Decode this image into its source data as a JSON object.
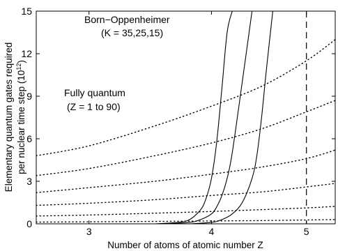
{
  "chart_data": {
    "type": "line",
    "xlabel": "Number of atoms of atomic number Z",
    "ylabel_line1": "Elementary quantum gates required",
    "ylabel_line2_pre": "per nuclear time step (10",
    "ylabel_line2_exp": "12",
    "ylabel_line2_post": ")",
    "xscale": "log10",
    "xlim": [
      2.65,
      5.35
    ],
    "ylim": [
      0,
      15
    ],
    "xticks": [
      3,
      4,
      5
    ],
    "xtick_labels": [
      "3",
      "4",
      "5"
    ],
    "yticks": [
      0,
      3,
      6,
      9,
      12,
      15
    ],
    "ytick_labels": [
      "0",
      "3",
      "6",
      "9",
      "12",
      "15"
    ],
    "grid": false,
    "legend": "none",
    "annotations": [
      {
        "id": "born",
        "text_line1": "Born−Oppenheimer",
        "text_line2": "(K = 35,25,15)"
      },
      {
        "id": "fully",
        "text_line1": "Fully quantum",
        "text_line2": "(Z = 1 to 90)"
      }
    ],
    "vertical_line": {
      "x": 5,
      "style": "dashed"
    },
    "series": [
      {
        "group": "Born-Oppenheimer",
        "style": "solid",
        "x": [
          3.5,
          3.7,
          3.8,
          3.9,
          3.95,
          4.0,
          4.05,
          4.1,
          4.15,
          4.2
        ],
        "y": [
          0.0,
          0.1,
          0.3,
          1.0,
          1.8,
          3.2,
          5.8,
          9.6,
          13.5,
          15.0
        ]
      },
      {
        "group": "Born-Oppenheimer",
        "style": "solid",
        "x": [
          3.6,
          3.8,
          3.9,
          4.0,
          4.05,
          4.1,
          4.15,
          4.2,
          4.3,
          4.4
        ],
        "y": [
          0.0,
          0.1,
          0.3,
          0.7,
          1.2,
          2.0,
          3.2,
          5.0,
          10.0,
          15.0
        ]
      },
      {
        "group": "Born-Oppenheimer",
        "style": "solid",
        "x": [
          3.8,
          4.0,
          4.1,
          4.2,
          4.3,
          4.4,
          4.45,
          4.5,
          4.55,
          4.62
        ],
        "y": [
          0.0,
          0.1,
          0.3,
          0.7,
          1.5,
          3.2,
          4.8,
          7.5,
          10.8,
          15.0
        ]
      },
      {
        "group": "Fully quantum",
        "style": "dotted",
        "x": [
          2.65,
          3.0,
          3.5,
          4.0,
          4.5,
          5.0,
          5.35
        ],
        "y": [
          4.8,
          5.5,
          6.9,
          8.3,
          9.7,
          11.5,
          13.0
        ]
      },
      {
        "group": "Fully quantum",
        "style": "dotted",
        "x": [
          2.65,
          3.0,
          3.5,
          4.0,
          4.5,
          5.0,
          5.35
        ],
        "y": [
          3.4,
          3.9,
          4.8,
          5.7,
          6.7,
          7.9,
          8.7
        ]
      },
      {
        "group": "Fully quantum",
        "style": "dotted",
        "x": [
          2.65,
          3.0,
          3.5,
          4.0,
          4.5,
          5.0,
          5.35
        ],
        "y": [
          2.2,
          2.55,
          3.0,
          3.5,
          4.0,
          4.6,
          5.2
        ]
      },
      {
        "group": "Fully quantum",
        "style": "dotted",
        "x": [
          2.65,
          3.0,
          3.5,
          4.0,
          4.5,
          5.0,
          5.35
        ],
        "y": [
          1.3,
          1.45,
          1.7,
          2.0,
          2.25,
          2.6,
          2.85
        ]
      },
      {
        "group": "Fully quantum",
        "style": "dotted",
        "x": [
          2.65,
          3.0,
          3.5,
          4.0,
          4.5,
          5.0,
          5.35
        ],
        "y": [
          0.55,
          0.62,
          0.75,
          0.87,
          1.0,
          1.12,
          1.23
        ]
      },
      {
        "group": "Fully quantum",
        "style": "dotted",
        "x": [
          2.65,
          3.0,
          3.5,
          4.0,
          4.5,
          5.0,
          5.35
        ],
        "y": [
          0.12,
          0.14,
          0.17,
          0.2,
          0.23,
          0.27,
          0.3
        ]
      }
    ]
  }
}
